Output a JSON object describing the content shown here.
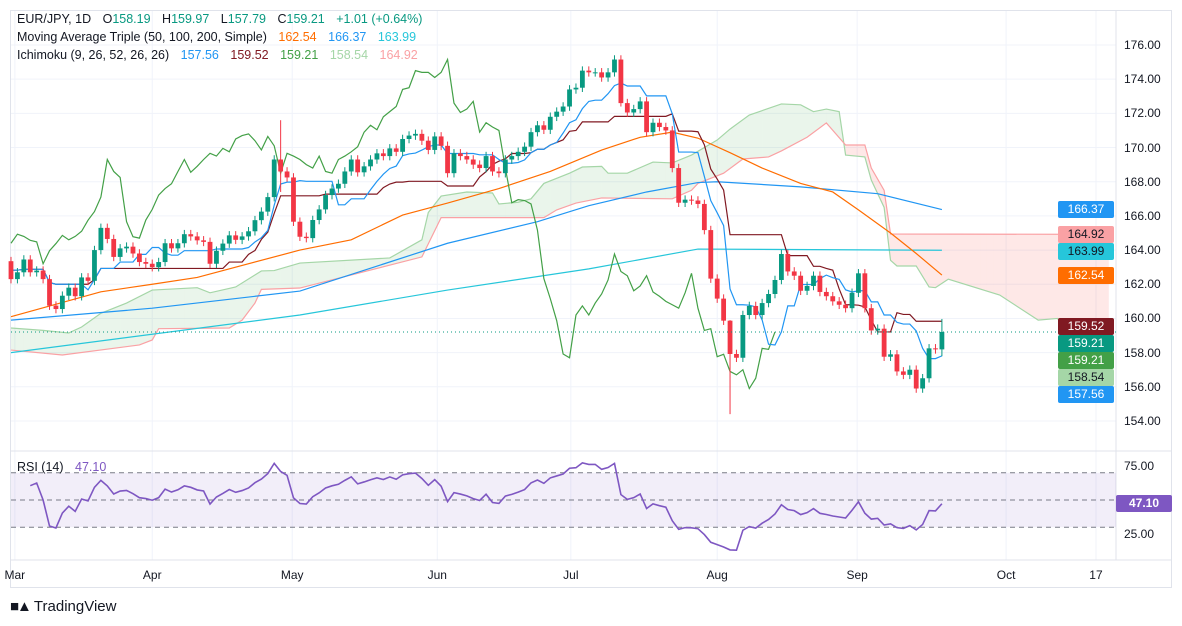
{
  "header": {
    "symbol": "EUR/JPY, 1D",
    "o_label": "O",
    "o": "158.19",
    "h_label": "H",
    "h": "159.97",
    "l_label": "L",
    "l": "157.79",
    "c_label": "C",
    "c": "159.21",
    "change": "+1.01 (+0.64%)"
  },
  "ma_legend": {
    "title": "Moving Average Triple (50, 100, 200, Simple)",
    "v50": "162.54",
    "v100": "166.37",
    "v200": "163.99"
  },
  "ichimoku_legend": {
    "title": "Ichimoku (9, 26, 52, 26, 26)",
    "tenkan": "157.56",
    "kijun": "159.52",
    "chikou": "159.21",
    "spanA": "158.54",
    "spanB": "164.92"
  },
  "rsi_legend": {
    "title": "RSI (14)",
    "value": "47.10"
  },
  "colors": {
    "up": "#089981",
    "down": "#F23645",
    "ma50": "#FF6D00",
    "ma100": "#2196F3",
    "ma200": "#26C6DA",
    "tenkan": "#2196F3",
    "kijun": "#801922",
    "chikou": "#43A047",
    "spanA": "#A5D6A7",
    "spanB": "#FAA1A4",
    "rsi": "#7E57C2"
  },
  "chart_data": {
    "type": "candlestick",
    "title": "EUR/JPY, 1D",
    "first_open": 163.35,
    "close": [
      162.3,
      162.7,
      163.45,
      162.7,
      162.8,
      162.3,
      160.75,
      160.55,
      161.33,
      161.8,
      161.3,
      162.4,
      162.2,
      164.0,
      165.3,
      164.65,
      163.6,
      164.1,
      164.2,
      163.8,
      163.3,
      163.2,
      163.0,
      163.3,
      164.4,
      164.1,
      164.4,
      164.93,
      164.8,
      164.57,
      164.48,
      163.2,
      163.96,
      164.38,
      164.86,
      164.6,
      164.8,
      165.1,
      165.75,
      166.25,
      167.1,
      169.3,
      168.6,
      168.25,
      165.66,
      164.78,
      164.7,
      165.76,
      166.38,
      167.22,
      167.6,
      167.88,
      168.6,
      169.3,
      168.55,
      168.9,
      169.3,
      169.66,
      169.5,
      169.95,
      169.75,
      170.5,
      170.7,
      170.8,
      170.4,
      169.86,
      170.65,
      170.1,
      168.5,
      169.66,
      169.5,
      169.3,
      169.0,
      168.8,
      169.5,
      168.6,
      168.5,
      169.3,
      169.5,
      169.75,
      170.05,
      170.9,
      171.3,
      171.04,
      171.8,
      172.1,
      172.4,
      173.4,
      173.5,
      174.5,
      174.4,
      174.4,
      174.1,
      174.4,
      175.15,
      172.6,
      172.05,
      172.25,
      172.7,
      170.9,
      171.45,
      171.2,
      171.0,
      168.8,
      166.77,
      166.95,
      166.9,
      166.7,
      165.17,
      162.33,
      161.16,
      159.87,
      157.92,
      157.7,
      160.2,
      160.73,
      160.2,
      160.9,
      161.43,
      162.25,
      163.77,
      162.75,
      162.5,
      161.62,
      161.9,
      162.5,
      161.55,
      161.3,
      161.0,
      160.8,
      160.6,
      161.5,
      162.64,
      160.6,
      159.3,
      159.4,
      157.76,
      157.9,
      156.9,
      156.7,
      157.0,
      155.9,
      156.5,
      158.25,
      158.19,
      159.21
    ],
    "wick_overrides": {
      "42": [
        171.6,
        167.4
      ],
      "95": [
        175.4,
        172.4
      ],
      "112": [
        159.9,
        154.4
      ],
      "145": [
        159.97,
        157.79
      ]
    },
    "ma50": [
      [
        0,
        160.1
      ],
      [
        14,
        161.56
      ],
      [
        22,
        162.0
      ],
      [
        29,
        162.4
      ],
      [
        45,
        164.0
      ],
      [
        53,
        164.6
      ],
      [
        61,
        166.05
      ],
      [
        68,
        166.75
      ],
      [
        76,
        167.6
      ],
      [
        84,
        168.6
      ],
      [
        92,
        169.85
      ],
      [
        98,
        170.6
      ],
      [
        103,
        170.9
      ],
      [
        107,
        170.55
      ],
      [
        112,
        169.7
      ],
      [
        117,
        168.8
      ],
      [
        123,
        167.9
      ],
      [
        128,
        167.4
      ],
      [
        132,
        166.35
      ],
      [
        137,
        165.0
      ],
      [
        141,
        163.8
      ],
      [
        145,
        162.54
      ]
    ],
    "ma100": [
      [
        0,
        159.9
      ],
      [
        22,
        160.6
      ],
      [
        45,
        161.6
      ],
      [
        68,
        164.4
      ],
      [
        82,
        165.66
      ],
      [
        90,
        166.6
      ],
      [
        99,
        167.4
      ],
      [
        107,
        167.95
      ],
      [
        110,
        168.0
      ],
      [
        123,
        167.7
      ],
      [
        135,
        167.3
      ],
      [
        145,
        166.37
      ]
    ],
    "ma200": [
      [
        0,
        158.0
      ],
      [
        45,
        160.2
      ],
      [
        68,
        161.66
      ],
      [
        90,
        162.9
      ],
      [
        107,
        164.06
      ],
      [
        145,
        163.99
      ]
    ],
    "spanA": [
      [
        0,
        159.44
      ],
      [
        5,
        159.3
      ],
      [
        9,
        159.15
      ],
      [
        11,
        159.5
      ],
      [
        14,
        160.3
      ],
      [
        18,
        160.9
      ],
      [
        22,
        161.66
      ],
      [
        29,
        161.8
      ],
      [
        31,
        161.5
      ],
      [
        35,
        161.84
      ],
      [
        39,
        162.78
      ],
      [
        41,
        162.8
      ],
      [
        45,
        163.24
      ],
      [
        59,
        163.54
      ],
      [
        64,
        164.6
      ],
      [
        65,
        166.2
      ],
      [
        67,
        167.16
      ],
      [
        71,
        167.4
      ],
      [
        75,
        167.34
      ],
      [
        76,
        166.7
      ],
      [
        79,
        166.8
      ],
      [
        81,
        167.0
      ],
      [
        83,
        167.9
      ],
      [
        87,
        168.5
      ],
      [
        89,
        168.86
      ],
      [
        92,
        168.9
      ],
      [
        93,
        168.5
      ],
      [
        96,
        168.5
      ],
      [
        100,
        169.15
      ],
      [
        103,
        169.1
      ],
      [
        106,
        169.56
      ],
      [
        110,
        170.44
      ],
      [
        112,
        171.08
      ],
      [
        115,
        171.9
      ],
      [
        120,
        172.55
      ],
      [
        123,
        172.5
      ],
      [
        125,
        172.1
      ],
      [
        127,
        172.25
      ],
      [
        129,
        172.1
      ],
      [
        130,
        169.56
      ],
      [
        133,
        169.45
      ],
      [
        134,
        168.1
      ],
      [
        136,
        166.5
      ],
      [
        137,
        163.4
      ],
      [
        138,
        163.07
      ],
      [
        141,
        163.07
      ],
      [
        143,
        161.84
      ],
      [
        144,
        161.8
      ],
      [
        146,
        162.3
      ],
      [
        154,
        161.37
      ],
      [
        160,
        159.9
      ],
      [
        163,
        160.0
      ],
      [
        166,
        158.74
      ],
      [
        170,
        158.6
      ],
      [
        171,
        158.54
      ]
    ],
    "spanB": [
      [
        0,
        158.15
      ],
      [
        8,
        157.86
      ],
      [
        20,
        158.45
      ],
      [
        22,
        158.74
      ],
      [
        23,
        159.4
      ],
      [
        34,
        159.44
      ],
      [
        36,
        159.9
      ],
      [
        38,
        160.9
      ],
      [
        39,
        161.7
      ],
      [
        45,
        161.78
      ],
      [
        64,
        163.6
      ],
      [
        67,
        165.9
      ],
      [
        83,
        165.9
      ],
      [
        85,
        166.35
      ],
      [
        88,
        166.75
      ],
      [
        92,
        167.05
      ],
      [
        103,
        167.0
      ],
      [
        106,
        167.5
      ],
      [
        107,
        167.9
      ],
      [
        111,
        168.5
      ],
      [
        114,
        169.33
      ],
      [
        118,
        169.45
      ],
      [
        120,
        169.8
      ],
      [
        124,
        170.6
      ],
      [
        127,
        171.44
      ],
      [
        130,
        170.15
      ],
      [
        133,
        170.15
      ],
      [
        134,
        168.8
      ],
      [
        136,
        167.5
      ],
      [
        137,
        164.94
      ],
      [
        171,
        164.92
      ]
    ],
    "last_price": 159.21,
    "y_ticks": [
      "176.00",
      "174.00",
      "172.00",
      "170.00",
      "168.00",
      "166.00",
      "164.00",
      "162.00",
      "160.00",
      "158.00",
      "156.00",
      "154.00"
    ],
    "ylim": [
      154,
      176
    ],
    "x_ticks": [
      {
        "label": "Mar",
        "bar": 0.6
      },
      {
        "label": "Apr",
        "bar": 22
      },
      {
        "label": "May",
        "bar": 43.8
      },
      {
        "label": "Jun",
        "bar": 66.4
      },
      {
        "label": "Jul",
        "bar": 87.2
      },
      {
        "label": "Aug",
        "bar": 110
      },
      {
        "label": "Sep",
        "bar": 131.8
      },
      {
        "label": "Oct",
        "bar": 155
      },
      {
        "label": "17",
        "bar": 169
      }
    ],
    "price_badges": [
      {
        "value": "166.37",
        "bg": "#2196F3",
        "fg": "#ffffff"
      },
      {
        "value": "164.92",
        "bg": "#FAA1A4",
        "fg": "#131722"
      },
      {
        "value": "163.99",
        "bg": "#26C6DA",
        "fg": "#131722"
      },
      {
        "value": "162.54",
        "bg": "#FF6D00",
        "fg": "#ffffff"
      },
      {
        "value": "159.52",
        "bg": "#801922",
        "fg": "#ffffff"
      },
      {
        "value": "159.21",
        "bg": "#089981",
        "fg": "#ffffff"
      },
      {
        "value": "159.21",
        "bg": "#43A047",
        "fg": "#ffffff"
      },
      {
        "value": "158.54",
        "bg": "#A5D6A7",
        "fg": "#131722"
      },
      {
        "value": "157.56",
        "bg": "#2196F3",
        "fg": "#ffffff"
      }
    ],
    "rsi": {
      "period": 14,
      "ticks": [
        "75.00",
        "25.00"
      ],
      "levels": [
        70,
        50,
        30
      ],
      "last": "47.10"
    }
  },
  "footer": {
    "brand": "TradingView",
    "logo_text": "TV"
  }
}
